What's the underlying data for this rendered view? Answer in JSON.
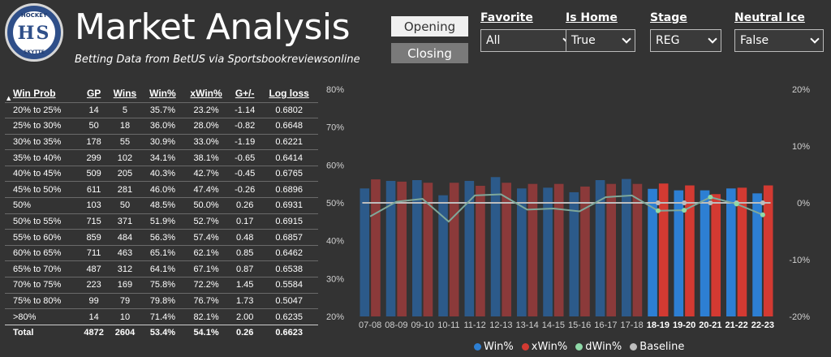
{
  "logo": {
    "top": "HOCKEY",
    "letters": "HS",
    "bottom": "SKYTTE"
  },
  "header": {
    "title": "Market Analysis",
    "subtitle": "Betting Data from BetUS via Sportsbookreviewsonline"
  },
  "buttons": {
    "opening": "Opening",
    "closing": "Closing"
  },
  "slicers": [
    {
      "label": "Favorite",
      "value": "All"
    },
    {
      "label": "Is Home",
      "value": "True"
    },
    {
      "label": "Stage",
      "value": "REG"
    },
    {
      "label": "Neutral Ice",
      "value": "False"
    }
  ],
  "table": {
    "headers": [
      "Win Prob",
      "GP",
      "Wins",
      "Win%",
      "xWin%",
      "G+/-",
      "Log loss"
    ],
    "rows": [
      [
        "20% to 25%",
        "14",
        "5",
        "35.7%",
        "23.2%",
        "-1.14",
        "0.6802"
      ],
      [
        "25% to 30%",
        "50",
        "18",
        "36.0%",
        "28.0%",
        "-0.82",
        "0.6648"
      ],
      [
        "30% to 35%",
        "178",
        "55",
        "30.9%",
        "33.0%",
        "-1.19",
        "0.6221"
      ],
      [
        "35% to 40%",
        "299",
        "102",
        "34.1%",
        "38.1%",
        "-0.65",
        "0.6414"
      ],
      [
        "40% to 45%",
        "509",
        "205",
        "40.3%",
        "42.7%",
        "-0.45",
        "0.6765"
      ],
      [
        "45% to 50%",
        "611",
        "281",
        "46.0%",
        "47.4%",
        "-0.26",
        "0.6896"
      ],
      [
        "50%",
        "103",
        "50",
        "48.5%",
        "50.0%",
        "0.26",
        "0.6931"
      ],
      [
        "50% to 55%",
        "715",
        "371",
        "51.9%",
        "52.7%",
        "0.17",
        "0.6915"
      ],
      [
        "55% to 60%",
        "859",
        "484",
        "56.3%",
        "57.4%",
        "0.48",
        "0.6857"
      ],
      [
        "60% to 65%",
        "711",
        "463",
        "65.1%",
        "62.1%",
        "0.85",
        "0.6462"
      ],
      [
        "65% to 70%",
        "487",
        "312",
        "64.1%",
        "67.1%",
        "0.87",
        "0.6538"
      ],
      [
        "70% to 75%",
        "223",
        "169",
        "75.8%",
        "72.2%",
        "1.45",
        "0.5584"
      ],
      [
        "75% to 80%",
        "99",
        "79",
        "79.8%",
        "76.7%",
        "1.73",
        "0.5047"
      ],
      [
        ">80%",
        "14",
        "10",
        "71.4%",
        "82.1%",
        "2.00",
        "0.6235"
      ]
    ],
    "total": [
      "Total",
      "4872",
      "2604",
      "53.4%",
      "54.1%",
      "0.26",
      "0.6623"
    ]
  },
  "legend": [
    "Win%",
    "xWin%",
    "dWin%",
    "Baseline"
  ],
  "colors": {
    "win_dim": "#2c5a8a",
    "xwin_dim": "#8b3a3a",
    "win": "#2d7fd3",
    "xwin": "#d33a32",
    "dwin": "#8fd9a8",
    "baseline": "#bdbdbd",
    "dline": "#7fa89a"
  },
  "chart_data": {
    "type": "bar",
    "categories": [
      "07-08",
      "08-09",
      "09-10",
      "10-11",
      "11-12",
      "12-13",
      "13-14",
      "14-15",
      "15-16",
      "16-17",
      "17-18",
      "18-19",
      "19-20",
      "20-21",
      "21-22",
      "22-23"
    ],
    "highlighted": [
      "18-19",
      "19-20",
      "20-21",
      "21-22",
      "22-23"
    ],
    "series": [
      {
        "name": "Win%",
        "axis": "left",
        "values": [
          53.8,
          55.8,
          56.0,
          52.0,
          55.8,
          56.8,
          53.8,
          54.0,
          52.8,
          56.0,
          56.3,
          53.7,
          53.3,
          53.3,
          53.8,
          52.5
        ]
      },
      {
        "name": "xWin%",
        "axis": "left",
        "values": [
          56.2,
          55.6,
          55.3,
          55.3,
          54.5,
          55.3,
          55.0,
          55.0,
          54.3,
          55.0,
          55.0,
          55.1,
          54.6,
          52.3,
          54.0,
          54.6
        ]
      },
      {
        "name": "dWin%",
        "axis": "right",
        "values": [
          -2.4,
          0.2,
          0.7,
          -3.3,
          1.3,
          1.5,
          -1.2,
          -1.0,
          -1.5,
          1.0,
          1.3,
          -1.4,
          -1.3,
          1.0,
          -0.2,
          -2.1
        ]
      },
      {
        "name": "Baseline",
        "axis": "right",
        "values": [
          0,
          0,
          0,
          0,
          0,
          0,
          0,
          0,
          0,
          0,
          0,
          0,
          0,
          0,
          0,
          0
        ]
      }
    ],
    "ylim_left": [
      20,
      80
    ],
    "yticks_left": [
      "20%",
      "30%",
      "40%",
      "50%",
      "60%",
      "70%",
      "80%"
    ],
    "ylim_right": [
      -20,
      20
    ],
    "yticks_right": [
      "-20%",
      "-10%",
      "0%",
      "10%",
      "20%"
    ],
    "legend_position": "bottom"
  }
}
